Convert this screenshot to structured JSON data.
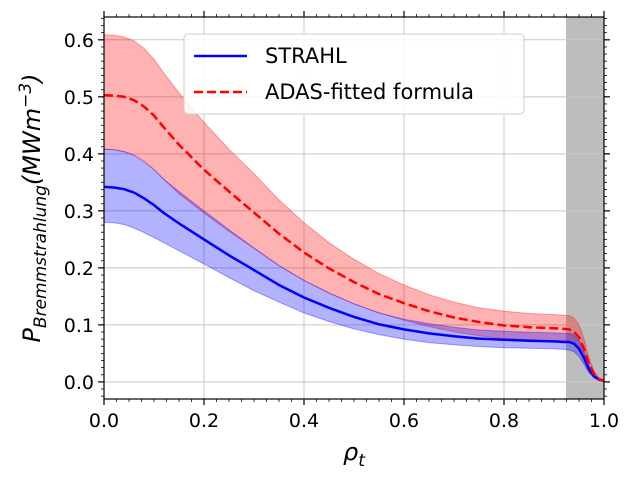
{
  "chart_data": {
    "type": "line",
    "title": "",
    "xlabel": "ρ_t",
    "ylabel": "P_Bremmstrahlung(MWm^-3)",
    "ylabel_parts": {
      "base": "P",
      "sub": "Bremmstrahlung",
      "unit_open": "(MWm",
      "unit_exp": "−3",
      "unit_close": ")"
    },
    "xlabel_parts": {
      "base": "ρ",
      "sub": "t"
    },
    "xlim": [
      0.0,
      1.0
    ],
    "ylim": [
      -0.03,
      0.64
    ],
    "grid": true,
    "legend_position": "top-center",
    "x_ticks": [
      0.0,
      0.2,
      0.4,
      0.6,
      0.8,
      1.0
    ],
    "x_tick_labels": [
      "0.0",
      "0.2",
      "0.4",
      "0.6",
      "0.8",
      "1.0"
    ],
    "y_ticks": [
      0.0,
      0.1,
      0.2,
      0.3,
      0.4,
      0.5,
      0.6
    ],
    "y_tick_labels": [
      "0.0",
      "0.1",
      "0.2",
      "0.3",
      "0.4",
      "0.5",
      "0.6"
    ],
    "shaded_region": {
      "x_start": 0.924,
      "x_end": 1.0,
      "color": "#bdbdbd"
    },
    "x": [
      0.0,
      0.02,
      0.04,
      0.06,
      0.08,
      0.1,
      0.12,
      0.15,
      0.2,
      0.25,
      0.3,
      0.35,
      0.4,
      0.45,
      0.5,
      0.55,
      0.6,
      0.65,
      0.7,
      0.75,
      0.8,
      0.85,
      0.9,
      0.92,
      0.93,
      0.94,
      0.95,
      0.96,
      0.97,
      0.98,
      0.99,
      1.0
    ],
    "series": [
      {
        "name": "STRAHL",
        "color": "#0000ff",
        "style": "solid",
        "values": [
          0.342,
          0.341,
          0.338,
          0.332,
          0.322,
          0.31,
          0.296,
          0.278,
          0.25,
          0.222,
          0.196,
          0.17,
          0.148,
          0.13,
          0.114,
          0.101,
          0.092,
          0.085,
          0.08,
          0.076,
          0.074,
          0.072,
          0.071,
          0.07,
          0.07,
          0.067,
          0.058,
          0.042,
          0.022,
          0.01,
          0.004,
          0.002
        ],
        "lower": [
          0.28,
          0.279,
          0.276,
          0.27,
          0.262,
          0.253,
          0.244,
          0.23,
          0.207,
          0.183,
          0.16,
          0.14,
          0.121,
          0.106,
          0.093,
          0.083,
          0.075,
          0.069,
          0.065,
          0.062,
          0.06,
          0.059,
          0.058,
          0.057,
          0.056,
          0.053,
          0.045,
          0.031,
          0.016,
          0.007,
          0.003,
          0.001
        ],
        "upper": [
          0.408,
          0.407,
          0.404,
          0.397,
          0.386,
          0.372,
          0.355,
          0.334,
          0.3,
          0.267,
          0.235,
          0.204,
          0.178,
          0.156,
          0.137,
          0.121,
          0.11,
          0.102,
          0.096,
          0.091,
          0.089,
          0.087,
          0.086,
          0.085,
          0.085,
          0.082,
          0.072,
          0.053,
          0.028,
          0.013,
          0.006,
          0.003
        ]
      },
      {
        "name": "ADAS-fitted formula",
        "color": "#ff0000",
        "style": "dashed",
        "values": [
          0.503,
          0.502,
          0.5,
          0.494,
          0.483,
          0.467,
          0.446,
          0.416,
          0.372,
          0.334,
          0.297,
          0.26,
          0.227,
          0.199,
          0.175,
          0.154,
          0.138,
          0.124,
          0.113,
          0.105,
          0.099,
          0.096,
          0.094,
          0.093,
          0.092,
          0.088,
          0.078,
          0.058,
          0.032,
          0.014,
          0.005,
          0.002
        ],
        "lower": [
          0.408,
          0.407,
          0.404,
          0.398,
          0.388,
          0.373,
          0.355,
          0.33,
          0.296,
          0.264,
          0.234,
          0.204,
          0.178,
          0.156,
          0.137,
          0.121,
          0.108,
          0.097,
          0.088,
          0.081,
          0.076,
          0.074,
          0.072,
          0.072,
          0.071,
          0.068,
          0.06,
          0.044,
          0.024,
          0.011,
          0.004,
          0.001
        ],
        "upper": [
          0.609,
          0.608,
          0.605,
          0.598,
          0.585,
          0.566,
          0.541,
          0.507,
          0.455,
          0.408,
          0.365,
          0.319,
          0.279,
          0.244,
          0.215,
          0.19,
          0.17,
          0.153,
          0.14,
          0.13,
          0.124,
          0.12,
          0.118,
          0.117,
          0.116,
          0.112,
          0.1,
          0.075,
          0.042,
          0.019,
          0.007,
          0.003
        ]
      }
    ]
  }
}
